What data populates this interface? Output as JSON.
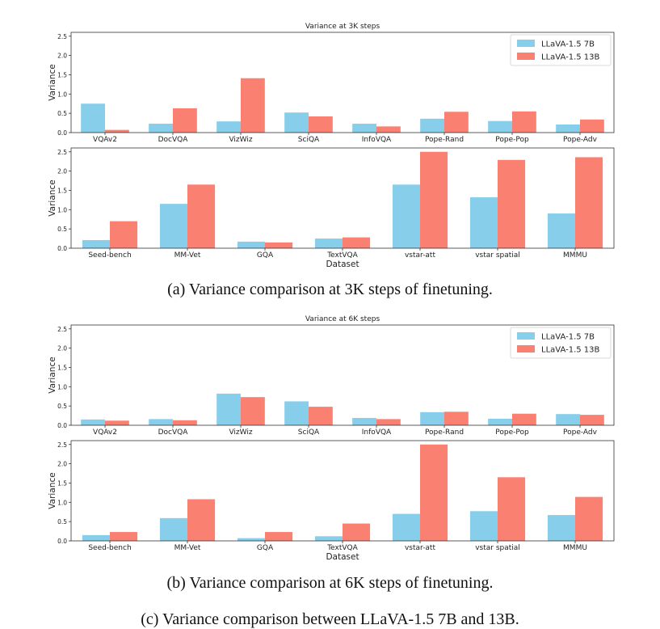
{
  "colors": {
    "series_7b": "#87CEEB",
    "series_13b": "#FA8072"
  },
  "captions": {
    "a": "(a) Variance comparison at 3K steps of finetuning.",
    "b": "(b) Variance comparison at 6K steps of finetuning.",
    "c": "(c) Variance comparison between LLaVA-1.5 7B and 13B."
  },
  "chart_data": [
    {
      "type": "bar",
      "title": "Variance at 3K steps",
      "xlabel": "",
      "ylabel": "Variance",
      "ylim": [
        0,
        2.6
      ],
      "yticks": [
        "0.0",
        "0.5",
        "1.0",
        "1.5",
        "2.0",
        "2.5"
      ],
      "legend": "top-right",
      "categories": [
        "VQAv2",
        "DocVQA",
        "VizWiz",
        "SciQA",
        "InfoVQA",
        "Pope-Rand",
        "Pope-Pop",
        "Pope-Adv"
      ],
      "series": [
        {
          "name": "LLaVA-1.5 7B",
          "values": [
            0.75,
            0.23,
            0.29,
            0.52,
            0.23,
            0.36,
            0.3,
            0.21
          ]
        },
        {
          "name": "LLaVA-1.5 13B",
          "values": [
            0.07,
            0.63,
            1.41,
            0.42,
            0.16,
            0.54,
            0.55,
            0.34
          ]
        }
      ]
    },
    {
      "type": "bar",
      "title": "",
      "xlabel": "Dataset",
      "ylabel": "Variance",
      "ylim": [
        0,
        2.6
      ],
      "yticks": [
        "0.0",
        "0.5",
        "1.0",
        "1.5",
        "2.0",
        "2.5"
      ],
      "categories": [
        "Seed-bench",
        "MM-Vet",
        "GQA",
        "TextVQA",
        "vstar-att",
        "vstar spatial",
        "MMMU"
      ],
      "series": [
        {
          "name": "LLaVA-1.5 7B",
          "values": [
            0.21,
            1.15,
            0.17,
            0.25,
            1.65,
            1.32,
            0.9
          ]
        },
        {
          "name": "LLaVA-1.5 13B",
          "values": [
            0.7,
            1.65,
            0.15,
            0.28,
            2.5,
            2.29,
            2.36
          ]
        }
      ]
    },
    {
      "type": "bar",
      "title": "Variance at 6K steps",
      "xlabel": "",
      "ylabel": "Variance",
      "ylim": [
        0,
        2.6
      ],
      "yticks": [
        "0.0",
        "0.5",
        "1.0",
        "1.5",
        "2.0",
        "2.5"
      ],
      "legend": "top-right",
      "categories": [
        "VQAv2",
        "DocVQA",
        "VizWiz",
        "SciQA",
        "InfoVQA",
        "Pope-Rand",
        "Pope-Pop",
        "Pope-Adv"
      ],
      "series": [
        {
          "name": "LLaVA-1.5 7B",
          "values": [
            0.15,
            0.16,
            0.82,
            0.62,
            0.19,
            0.34,
            0.17,
            0.29
          ]
        },
        {
          "name": "LLaVA-1.5 13B",
          "values": [
            0.12,
            0.13,
            0.73,
            0.48,
            0.16,
            0.35,
            0.3,
            0.27
          ]
        }
      ]
    },
    {
      "type": "bar",
      "title": "",
      "xlabel": "Dataset",
      "ylabel": "Variance",
      "ylim": [
        0,
        2.6
      ],
      "yticks": [
        "0.0",
        "0.5",
        "1.0",
        "1.5",
        "2.0",
        "2.5"
      ],
      "categories": [
        "Seed-bench",
        "MM-Vet",
        "GQA",
        "TextVQA",
        "vstar-att",
        "vstar spatial",
        "MMMU"
      ],
      "series": [
        {
          "name": "LLaVA-1.5 7B",
          "values": [
            0.15,
            0.59,
            0.07,
            0.12,
            0.7,
            0.77,
            0.67
          ]
        },
        {
          "name": "LLaVA-1.5 13B",
          "values": [
            0.23,
            1.08,
            0.23,
            0.45,
            2.5,
            1.65,
            1.14
          ]
        }
      ]
    }
  ]
}
